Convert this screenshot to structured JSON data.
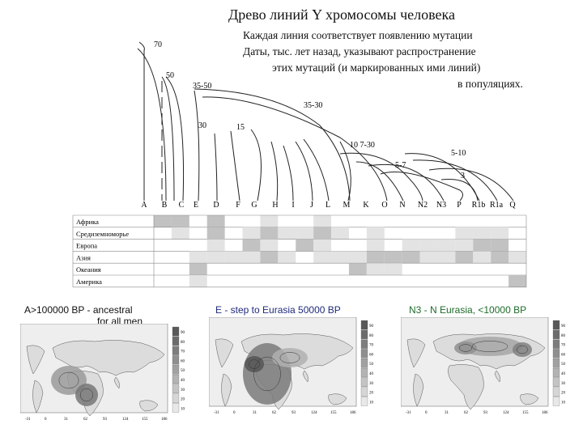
{
  "title": "Древо линий Y хромосомы человека",
  "description_lines": [
    "Каждая линия соответствует появлению мутации",
    "Даты, тыс. лет назад, указывают распространение",
    "этих мутаций (и маркированных ими  линий)",
    "в популяциях."
  ],
  "tree": {
    "date_labels": [
      "70",
      "50",
      "35-50",
      "35-30",
      "30",
      "15",
      "10 7-30",
      "5-10",
      "5-7",
      "3"
    ],
    "haplogroups": [
      "A",
      "B",
      "C",
      "E",
      "D",
      "F",
      "G",
      "H",
      "I",
      "J",
      "L",
      "M",
      "K",
      "O",
      "N",
      "N2",
      "N3",
      "P",
      "R1b",
      "R1a",
      "Q"
    ]
  },
  "regions": [
    "Африка",
    "Средиземноморье",
    "Европа",
    "Азия",
    "Океания",
    "Америка"
  ],
  "matrix": [
    [
      2,
      2,
      0,
      2,
      0,
      0,
      1,
      0,
      0,
      1,
      0,
      0,
      0,
      0,
      0,
      0,
      0,
      0,
      0,
      0,
      0
    ],
    [
      0,
      1,
      0,
      2,
      0,
      1,
      2,
      1,
      1,
      2,
      1,
      0,
      1,
      0,
      0,
      0,
      0,
      1,
      1,
      1,
      0
    ],
    [
      0,
      0,
      0,
      1,
      0,
      2,
      1,
      0,
      2,
      1,
      0,
      0,
      1,
      0,
      1,
      1,
      1,
      1,
      2,
      2,
      0
    ],
    [
      0,
      0,
      1,
      1,
      1,
      1,
      2,
      1,
      0,
      1,
      1,
      1,
      2,
      2,
      2,
      1,
      1,
      2,
      1,
      2,
      1
    ],
    [
      0,
      0,
      2,
      0,
      0,
      0,
      0,
      0,
      0,
      0,
      0,
      2,
      1,
      1,
      0,
      0,
      0,
      0,
      0,
      0,
      0
    ],
    [
      0,
      0,
      1,
      0,
      0,
      0,
      0,
      0,
      0,
      0,
      0,
      0,
      0,
      0,
      0,
      0,
      0,
      0,
      0,
      0,
      2
    ]
  ],
  "maps": [
    {
      "caption_line1": "A>100000 BP - ancestral",
      "caption_line2": "for all men",
      "caption_color": "#222222"
    },
    {
      "caption_line1": "E - step to Eurasia 50000 BP",
      "caption_line2": "",
      "caption_color": "#1f2a7a"
    },
    {
      "caption_line1": "N3 - N Eurasia, <10000 BP",
      "caption_line2": "",
      "caption_color": "#1e6b2a"
    }
  ],
  "map_axis_x": [
    "-31",
    "0",
    "31",
    "62",
    "93",
    "124",
    "155",
    "186"
  ],
  "map_scale": [
    "90",
    "80",
    "70",
    "60",
    "50",
    "40",
    "30",
    "20",
    "10"
  ]
}
